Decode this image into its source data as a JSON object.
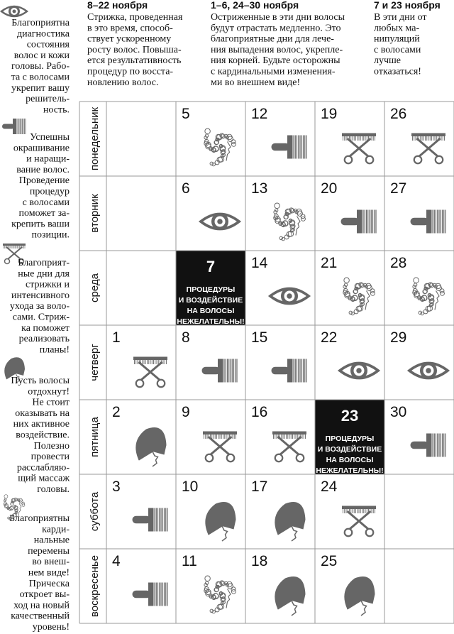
{
  "legend": [
    {
      "icon": "eye",
      "lines": [
        "Благоприятна",
        "диагностика",
        "состояния",
        "волос и кожи",
        "головы. Рабо-",
        "та с волосами",
        "укрепит вашу",
        "решитель-",
        "ность."
      ]
    },
    {
      "icon": "comb",
      "lines": [
        "Успешны",
        "окрашивание",
        "и наращи-",
        "вание волос.",
        "Проведение",
        "процедур",
        "с волосами",
        "поможет за-",
        "крепить ваши",
        "позиции."
      ]
    },
    {
      "icon": "scissors",
      "lines": [
        "Благоприят-",
        "ные дни для",
        "стрижки и",
        "интенсивного",
        "ухода за воло-",
        "сами. Стриж-",
        "ка поможет",
        "реализовать",
        "планы!"
      ]
    },
    {
      "icon": "head",
      "lines": [
        "Пусть волосы",
        "отдохнут!",
        "Не стоит",
        "оказывать на",
        "них активное",
        "воздействие.",
        "Полезно",
        "провести",
        "расслабляю-",
        "щий массаж",
        "головы."
      ]
    },
    {
      "icon": "curly",
      "lines": [
        "Благоприятны",
        "карди-",
        "нальные",
        "перемены",
        "во внеш-",
        "нем виде!",
        "Прическа",
        "откроет вы-",
        "ход на новый",
        "качественный",
        "уровень!"
      ]
    }
  ],
  "header": [
    {
      "date": "8–22 ноября",
      "lines": [
        "Стрижка, проведенная",
        "в это время, способ-",
        "ствует ускоренному",
        "росту волос. Повыша-",
        "ется результативность",
        "процедур по восста-",
        "новлению волос."
      ]
    },
    {
      "date": "1–6, 24–30 ноября",
      "lines": [
        "Остриженные в эти дни волосы",
        "будут отрастать медленно. Это",
        "благоприятные дни для лече-",
        "ния выпадения волос, укрепле-",
        "ния корней. Будьте осторожны",
        "с кардинальными изменения-",
        "ми во внешнем виде!"
      ]
    },
    {
      "date": "7 и 23 ноября",
      "lines": [
        "В эти дни от",
        "любых ма-",
        "нипуляций",
        "с волосами",
        "лучше",
        "отказаться!"
      ]
    }
  ],
  "note": [
    "ПРОЦЕДУРЫ",
    "И ВОЗДЕЙСТВИЕ",
    "НА ВОЛОСЫ",
    "НЕЖЕЛАТЕЛЬНЫ!"
  ],
  "days": [
    {
      "name": "понедельник",
      "cells": [
        null,
        {
          "day": 5,
          "icon": "curly"
        },
        {
          "day": 12,
          "icon": "comb"
        },
        {
          "day": 19,
          "icon": "scissors"
        },
        {
          "day": 26,
          "icon": "scissors"
        }
      ]
    },
    {
      "name": "вторник",
      "cells": [
        null,
        {
          "day": 6,
          "icon": "eye"
        },
        {
          "day": 13,
          "icon": "curly"
        },
        {
          "day": 20,
          "icon": "comb"
        },
        {
          "day": 27,
          "icon": "comb"
        }
      ]
    },
    {
      "name": "среда",
      "cells": [
        null,
        {
          "day": 7,
          "icon": "black"
        },
        {
          "day": 14,
          "icon": "eye"
        },
        {
          "day": 21,
          "icon": "curly"
        },
        {
          "day": 28,
          "icon": "curly"
        }
      ]
    },
    {
      "name": "четверг",
      "cells": [
        {
          "day": 1,
          "icon": "scissors"
        },
        {
          "day": 8,
          "icon": "comb"
        },
        {
          "day": 15,
          "icon": "comb"
        },
        {
          "day": 22,
          "icon": "eye"
        },
        {
          "day": 29,
          "icon": "eye"
        }
      ]
    },
    {
      "name": "пятница",
      "cells": [
        {
          "day": 2,
          "icon": "head"
        },
        {
          "day": 9,
          "icon": "scissors"
        },
        {
          "day": 16,
          "icon": "scissors"
        },
        {
          "day": 23,
          "icon": "black"
        },
        {
          "day": 30,
          "icon": "comb"
        }
      ]
    },
    {
      "name": "суббота",
      "cells": [
        {
          "day": 3,
          "icon": "comb"
        },
        {
          "day": 10,
          "icon": "head"
        },
        {
          "day": 17,
          "icon": "head"
        },
        {
          "day": 24,
          "icon": "scissors"
        },
        null
      ]
    },
    {
      "name": "воскресенье",
      "cells": [
        {
          "day": 4,
          "icon": "comb"
        },
        {
          "day": 11,
          "icon": "curly"
        },
        {
          "day": 18,
          "icon": "head"
        },
        {
          "day": 25,
          "icon": "head"
        },
        null
      ]
    }
  ]
}
